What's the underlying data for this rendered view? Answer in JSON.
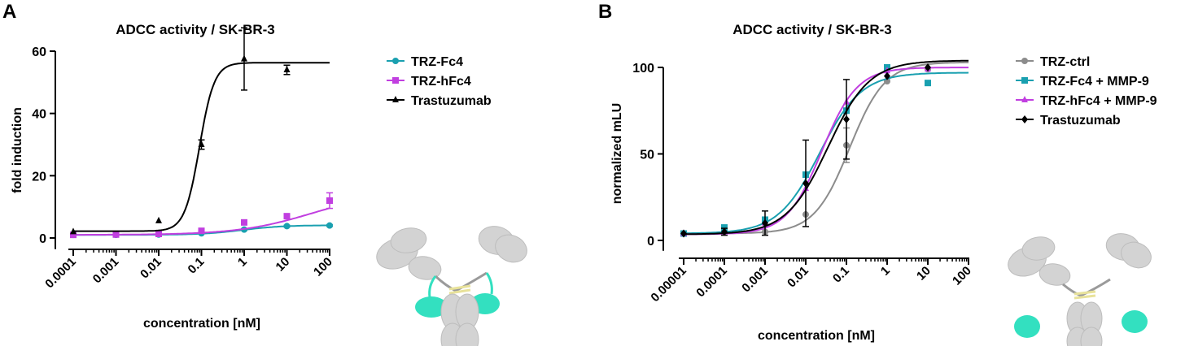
{
  "colors": {
    "teal": "#1aa0b0",
    "magenta": "#c13fe0",
    "black": "#000000",
    "gray": "#8c8c8c",
    "antibody": "#d3d3d3",
    "domain": "#33e0c0",
    "linker": "#e8e29a"
  },
  "chart_data": [
    {
      "type": "line",
      "panel_letter": "A",
      "title": "ADCC activity / SK-BR-3",
      "xlabel": "concentration [nM]",
      "ylabel": "fold induction",
      "x_scale": "log",
      "xlim": [
        0.0001,
        100
      ],
      "ylim": [
        0,
        60
      ],
      "x_ticks": [
        0.0001,
        0.001,
        0.01,
        0.1,
        1,
        10,
        100
      ],
      "x_tick_labels": [
        "0.0001",
        "0.001",
        "0.01",
        "0.1",
        "1",
        "10",
        "100"
      ],
      "y_ticks": [
        0,
        20,
        40,
        60
      ],
      "y_tick_labels": [
        "0",
        "20",
        "40",
        "60"
      ],
      "legend_position": "right",
      "series": [
        {
          "name": "TRZ-Fc4",
          "color": "#1aa0b0",
          "marker": "circle",
          "x": [
            0.0001,
            0.001,
            0.01,
            0.1,
            1,
            10,
            100
          ],
          "y": [
            1.0,
            1.0,
            1.1,
            1.5,
            2.7,
            3.8,
            4.0
          ],
          "err": [
            0,
            0,
            0,
            0,
            0.3,
            0.3,
            0.3
          ],
          "fit": {
            "bottom": 1.0,
            "top": 4.1,
            "ec50": 0.9,
            "hill": 0.9
          }
        },
        {
          "name": "TRZ-hFc4",
          "color": "#c13fe0",
          "marker": "square",
          "x": [
            0.0001,
            0.001,
            0.01,
            0.1,
            1,
            10,
            100
          ],
          "y": [
            1.0,
            1.1,
            1.3,
            2.3,
            5.0,
            7.0,
            12.0
          ],
          "err": [
            0,
            0,
            0,
            0,
            0.4,
            0.4,
            2.5
          ],
          "fit": {
            "bottom": 1.0,
            "top": 15.0,
            "ec50": 40,
            "hill": 0.5
          }
        },
        {
          "name": "Trastuzumab",
          "color": "#000000",
          "marker": "triangle",
          "x": [
            0.0001,
            0.01,
            0.1,
            1,
            10
          ],
          "y": [
            2.0,
            5.5,
            30.0,
            57.5,
            54.0
          ],
          "err": [
            0,
            0,
            1.5,
            10,
            1.5
          ],
          "fit": {
            "bottom": 2.2,
            "top": 56.3,
            "ec50": 0.09,
            "hill": 2.5
          }
        }
      ]
    },
    {
      "type": "line",
      "panel_letter": "B",
      "title": "ADCC activity / SK-BR-3",
      "xlabel": "concentration [nM]",
      "ylabel": "normalized mLU",
      "x_scale": "log",
      "xlim": [
        1e-05,
        100
      ],
      "ylim": [
        -5,
        105
      ],
      "x_ticks": [
        1e-05,
        0.0001,
        0.001,
        0.01,
        0.1,
        1,
        10,
        100
      ],
      "x_tick_labels": [
        "0.00001",
        "0.0001",
        "0.001",
        "0.01",
        "0.1",
        "1",
        "10",
        "100"
      ],
      "y_ticks": [
        0,
        50,
        100
      ],
      "y_tick_labels": [
        "0",
        "50",
        "100"
      ],
      "legend_position": "right",
      "series": [
        {
          "name": "TRZ-ctrl",
          "color": "#8c8c8c",
          "marker": "circle",
          "x": [
            1e-05,
            0.0001,
            0.001,
            0.01,
            0.1,
            1,
            10
          ],
          "y": [
            4,
            5,
            5,
            15,
            55,
            92,
            99
          ],
          "err": [
            0,
            0,
            0,
            0,
            10,
            0,
            0
          ],
          "fit": {
            "bottom": 4,
            "top": 103,
            "ec50": 0.12,
            "hill": 1.0
          }
        },
        {
          "name": "TRZ-Fc4 + MMP-9",
          "color": "#1aa0b0",
          "marker": "square",
          "x": [
            1e-05,
            0.0001,
            0.001,
            0.01,
            0.1,
            1,
            10
          ],
          "y": [
            4,
            7,
            12,
            38,
            75,
            100,
            91
          ],
          "err": [
            0,
            2,
            0,
            0,
            0,
            0,
            0
          ],
          "fit": {
            "bottom": 4,
            "top": 97,
            "ec50": 0.022,
            "hill": 0.85
          }
        },
        {
          "name": "TRZ-hFc4 + MMP-9",
          "color": "#c13fe0",
          "marker": "triangle",
          "x": [
            1e-05,
            0.0001,
            0.001,
            0.01,
            0.1,
            1,
            10
          ],
          "y": [
            4,
            5,
            10,
            30,
            80,
            98,
            99
          ],
          "err": [
            0,
            0,
            0,
            0,
            0,
            0,
            0
          ],
          "fit": {
            "bottom": 3.5,
            "top": 100,
            "ec50": 0.025,
            "hill": 1.0
          }
        },
        {
          "name": "Trastuzumab",
          "color": "#000000",
          "marker": "diamond",
          "x": [
            1e-05,
            0.0001,
            0.001,
            0.01,
            0.1,
            1,
            10
          ],
          "y": [
            4,
            5,
            10,
            33,
            70,
            95,
            100
          ],
          "err": [
            0,
            2,
            7,
            25,
            23,
            0,
            0
          ],
          "fit": {
            "bottom": 3.5,
            "top": 104,
            "ec50": 0.035,
            "hill": 0.85
          }
        }
      ]
    }
  ]
}
